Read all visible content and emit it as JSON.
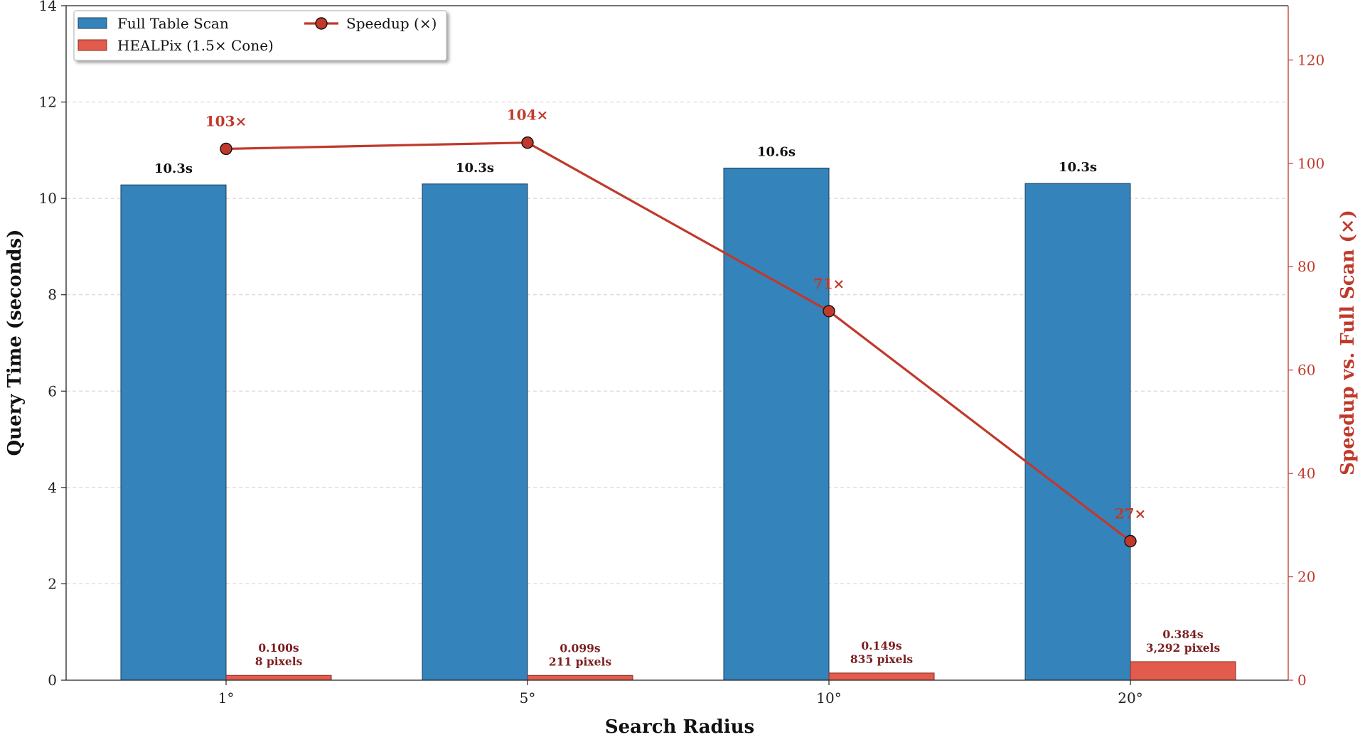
{
  "chart_data": {
    "type": "bar",
    "categories": [
      "1°",
      "5°",
      "10°",
      "20°"
    ],
    "xlabel": "Search Radius",
    "ylabel": "Query Time (seconds)",
    "ylabel_right": "Speedup vs. Full Scan (×)",
    "ylim": [
      0,
      14
    ],
    "ylim_right": [
      0,
      130.5
    ],
    "yticks": [
      "0",
      "2",
      "4",
      "6",
      "8",
      "10",
      "12",
      "14"
    ],
    "yticks_right": [
      "0",
      "20",
      "40",
      "60",
      "80",
      "100",
      "120"
    ],
    "grid": "horizontal dashed",
    "legend_position": "top-left",
    "series": [
      {
        "name": "Full Table Scan",
        "kind": "bar",
        "color": "#3583bb",
        "values": [
          10.28,
          10.3,
          10.63,
          10.31
        ],
        "labels": [
          "10.3s",
          "10.3s",
          "10.6s",
          "10.3s"
        ]
      },
      {
        "name": "HEALPix (1.5× Cone)",
        "kind": "bar",
        "color": "#e35b4c",
        "values": [
          0.1,
          0.099,
          0.149,
          0.384
        ],
        "labels": [
          "0.100s",
          "0.099s",
          "0.149s",
          "0.384s"
        ],
        "sublabels": [
          "8 pixels",
          "211 pixels",
          "835 pixels",
          "3,292 pixels"
        ]
      },
      {
        "name": "Speedup (×)",
        "kind": "line",
        "axis": "right",
        "color": "#c0392b",
        "values": [
          102.8,
          104.0,
          71.4,
          26.9
        ],
        "labels": [
          "103×",
          "104×",
          "71×",
          "27×"
        ]
      }
    ]
  }
}
